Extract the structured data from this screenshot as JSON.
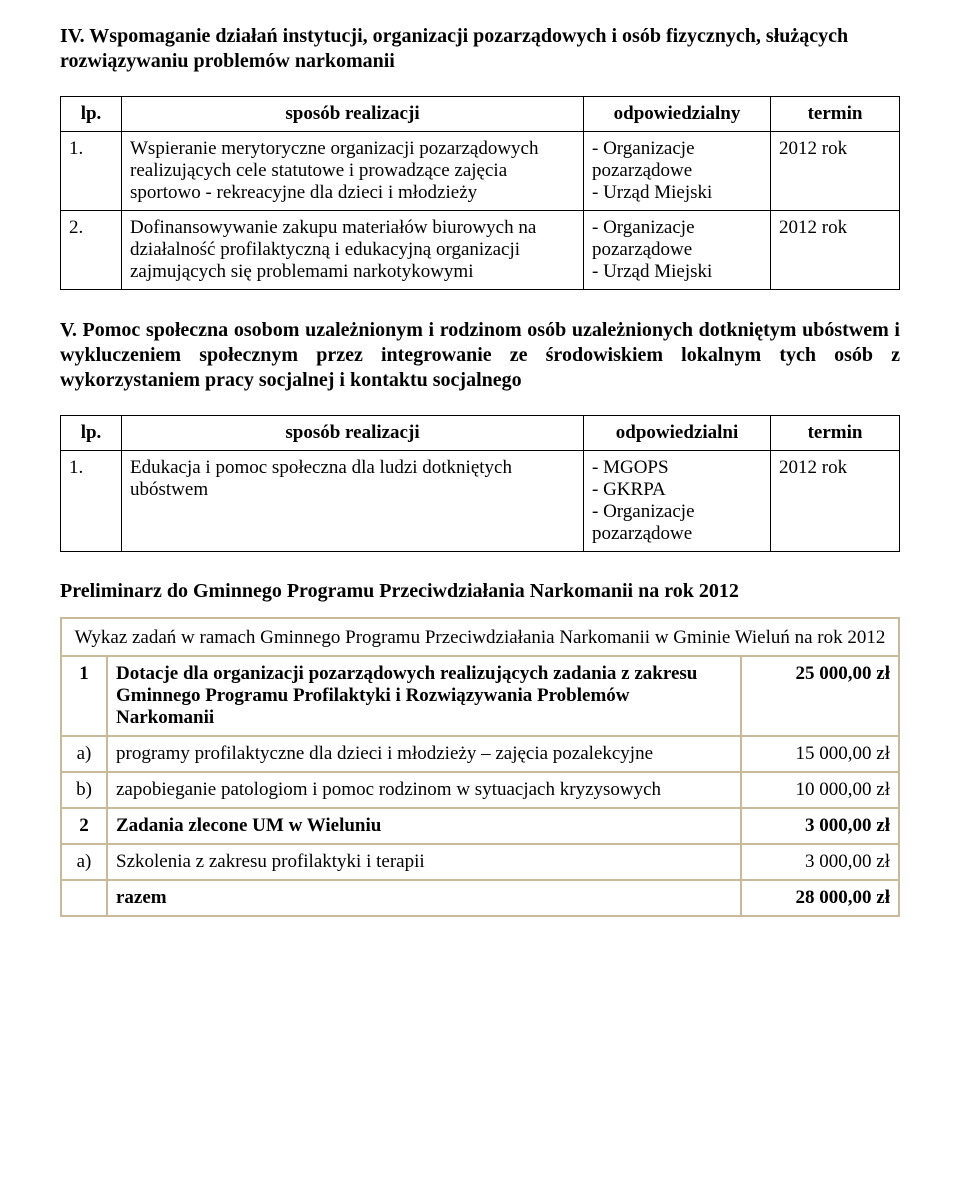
{
  "section4": {
    "title": "IV. Wspomaganie działań instytucji,  organizacji pozarządowych i osób fizycznych, służących rozwiązywaniu problemów narkomanii",
    "headers": {
      "lp": "lp.",
      "sposob": "sposób realizacji",
      "odp": "odpowiedzialny",
      "termin": "termin"
    },
    "rows": [
      {
        "lp": "1.",
        "sposob": "Wspieranie merytoryczne  organizacji pozarządowych  realizujących cele statutowe i prowadzące zajęcia sportowo - rekreacyjne dla dzieci i młodzieży",
        "odp": "- Organizacje pozarządowe\n- Urząd Miejski",
        "termin": "2012  rok"
      },
      {
        "lp": "2.",
        "sposob": "Dofinansowywanie zakupu materiałów biurowych na działalność profilaktyczną i edukacyjną organizacji zajmujących się problemami narkotykowymi",
        "odp": "- Organizacje pozarządowe\n- Urząd Miejski",
        "termin": "2012  rok"
      }
    ]
  },
  "section5": {
    "title": "V. Pomoc społeczna osobom uzależnionym i rodzinom osób uzależnionych dotkniętym ubóstwem i wykluczeniem społecznym przez integrowanie ze środowiskiem lokalnym tych osób z wykorzystaniem pracy socjalnej i kontaktu socjalnego",
    "headers": {
      "lp": "lp.",
      "sposob": "sposób realizacji",
      "odp": "odpowiedzialni",
      "termin": "termin"
    },
    "rows": [
      {
        "lp": "1.",
        "sposob": "Edukacja i pomoc społeczna dla ludzi dotkniętych ubóstwem",
        "odp": "- MGOPS\n- GKRPA\n- Organizacje pozarządowe",
        "termin": "2012 rok"
      }
    ]
  },
  "prelim": {
    "title": "Preliminarz do Gminnego Programu Przeciwdziałania Narkomanii  na rok 2012",
    "header": "Wykaz zadań w ramach Gminnego Programu Przeciwdziałania Narkomanii w Gminie Wieluń na rok 2012",
    "rows": [
      {
        "num": "1",
        "desc": "Dotacje dla organizacji pozarządowych realizujących zadania z zakresu Gminnego Programu Profilaktyki i Rozwiązywania Problemów Narkomanii",
        "amount": "25 000,00 zł",
        "bold": true
      },
      {
        "num": "a)",
        "desc": "programy  profilaktyczne dla dzieci i młodzieży – zajęcia pozalekcyjne",
        "amount": "15 000,00 zł",
        "bold": false
      },
      {
        "num": "b)",
        "desc": "zapobieganie patologiom i pomoc rodzinom w sytuacjach kryzysowych",
        "amount": "10 000,00 zł",
        "bold": false
      },
      {
        "num": "2",
        "desc": "Zadania zlecone UM w Wieluniu",
        "amount": "3 000,00 zł",
        "bold": true
      },
      {
        "num": "a)",
        "desc": "Szkolenia z zakresu profilaktyki i terapii",
        "amount": "3 000,00 zł",
        "bold": false
      },
      {
        "num": "",
        "desc": "razem",
        "amount": "28 000,00 zł",
        "bold": true
      }
    ]
  }
}
